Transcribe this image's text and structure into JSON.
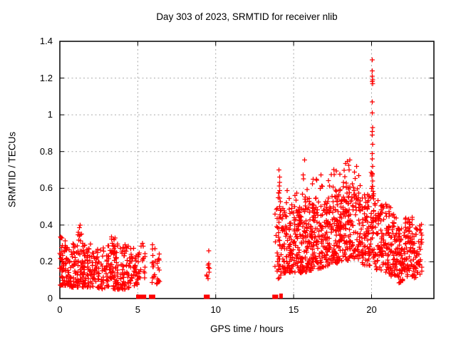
{
  "chart_data": {
    "type": "scatter",
    "title": "Day 303 of 2023, SRMTID for receiver nlib",
    "xlabel": "GPS time / hours",
    "ylabel": "SRMTID / TECUs",
    "xlim": [
      0,
      24
    ],
    "ylim": [
      0,
      1.4
    ],
    "x_ticks": [
      {
        "v": 0,
        "label": "0"
      },
      {
        "v": 5,
        "label": "5"
      },
      {
        "v": 10,
        "label": "10"
      },
      {
        "v": 15,
        "label": "15"
      },
      {
        "v": 20,
        "label": "20"
      }
    ],
    "y_ticks": [
      {
        "v": 0,
        "label": "0"
      },
      {
        "v": 0.2,
        "label": "0.2"
      },
      {
        "v": 0.4,
        "label": "0.4"
      },
      {
        "v": 0.6,
        "label": "0.6"
      },
      {
        "v": 0.8,
        "label": "0.8"
      },
      {
        "v": 1,
        "label": "1"
      },
      {
        "v": 1.2,
        "label": "1.2"
      },
      {
        "v": 1.4,
        "label": "1.4"
      }
    ],
    "legend": null,
    "grid": {
      "on": true,
      "color": "#aaaaaa",
      "dash": "2,3.5"
    },
    "marker": {
      "shape": "plus",
      "color": "#ff0000",
      "size": 7
    },
    "seed": 42,
    "description": "Red plus-marker scatter: dense band 0-5.2h at 0.05-0.40 TECU; sparse columns near 5.3h, 6-6.4h and 9.5h; no data 6.4-9.4h and 9.6-13.7h; dense activity 13.8-23.2h mostly 0.1-0.75 TECU rising toward 18-19h, with an isolated spike column at ~20.05h reaching 1.30; isolated zero-value points near 5.1, 5.4, 5.9, 9.4, 13.8 and 14.2h.",
    "clusters": [
      {
        "x": [
          0.0,
          0.6
        ],
        "n": 70,
        "lo": [
          0.07,
          0.07
        ],
        "hi": [
          0.34,
          0.3
        ],
        "bias": 1.4
      },
      {
        "x": [
          0.6,
          2.4
        ],
        "n": 170,
        "lo": [
          0.06,
          0.06
        ],
        "hi": [
          0.3,
          0.3
        ],
        "bias": 1.5
      },
      {
        "x": [
          1.15,
          1.5
        ],
        "n": 8,
        "lo": [
          0.28,
          0.26
        ],
        "hi": [
          0.4,
          0.34
        ],
        "bias": 1.0
      },
      {
        "x": [
          2.4,
          4.2
        ],
        "n": 150,
        "lo": [
          0.05,
          0.05
        ],
        "hi": [
          0.28,
          0.3
        ],
        "bias": 1.5
      },
      {
        "x": [
          3.3,
          3.9
        ],
        "n": 10,
        "lo": [
          0.24,
          0.24
        ],
        "hi": [
          0.34,
          0.3
        ],
        "bias": 1.0
      },
      {
        "x": [
          4.2,
          5.15
        ],
        "n": 70,
        "lo": [
          0.05,
          0.08
        ],
        "hi": [
          0.3,
          0.26
        ],
        "bias": 1.4
      },
      {
        "x": [
          5.18,
          5.5
        ],
        "n": 13,
        "lo": [
          0.1,
          0.1
        ],
        "hi": [
          0.33,
          0.28
        ],
        "bias": 1.1
      },
      {
        "x": [
          5.88,
          6.12
        ],
        "n": 15,
        "lo": [
          0.07,
          0.08
        ],
        "hi": [
          0.3,
          0.28
        ],
        "bias": 1.1
      },
      {
        "x": [
          6.18,
          6.42
        ],
        "n": 13,
        "lo": [
          0.08,
          0.08
        ],
        "hi": [
          0.28,
          0.24
        ],
        "bias": 1.1
      },
      {
        "x": [
          9.38,
          9.62
        ],
        "n": 8,
        "lo": [
          0.1,
          0.1
        ],
        "hi": [
          0.2,
          0.19
        ],
        "bias": 1.0
      },
      {
        "x": [
          13.75,
          13.98
        ],
        "n": 12,
        "lo": [
          0.17,
          0.12
        ],
        "hi": [
          0.46,
          0.5
        ],
        "bias": 1.1
      },
      {
        "x": [
          13.98,
          14.32
        ],
        "n": 42,
        "lo": [
          0.1,
          0.13
        ],
        "hi": [
          0.58,
          0.5
        ],
        "bias": 1.3
      },
      {
        "x": [
          13.98,
          14.25
        ],
        "n": 8,
        "lo": [
          0.55,
          0.52
        ],
        "hi": [
          0.71,
          0.62
        ],
        "bias": 1.0
      },
      {
        "x": [
          14.32,
          15.3
        ],
        "n": 115,
        "lo": [
          0.13,
          0.14
        ],
        "hi": [
          0.48,
          0.5
        ],
        "bias": 1.3
      },
      {
        "x": [
          14.5,
          15.25
        ],
        "n": 8,
        "lo": [
          0.48,
          0.48
        ],
        "hi": [
          0.6,
          0.58
        ],
        "bias": 1.0
      },
      {
        "x": [
          15.3,
          16.1
        ],
        "n": 115,
        "lo": [
          0.13,
          0.15
        ],
        "hi": [
          0.5,
          0.52
        ],
        "bias": 1.3
      },
      {
        "x": [
          15.45,
          16.05
        ],
        "n": 10,
        "lo": [
          0.5,
          0.5
        ],
        "hi": [
          0.76,
          0.62
        ],
        "bias": 1.2
      },
      {
        "x": [
          16.1,
          17.1
        ],
        "n": 125,
        "lo": [
          0.15,
          0.17
        ],
        "hi": [
          0.52,
          0.54
        ],
        "bias": 1.25
      },
      {
        "x": [
          16.2,
          17.0
        ],
        "n": 10,
        "lo": [
          0.52,
          0.54
        ],
        "hi": [
          0.66,
          0.68
        ],
        "bias": 1.0
      },
      {
        "x": [
          17.1,
          18.1
        ],
        "n": 135,
        "lo": [
          0.17,
          0.2
        ],
        "hi": [
          0.55,
          0.58
        ],
        "bias": 1.2
      },
      {
        "x": [
          17.2,
          18.0
        ],
        "n": 12,
        "lo": [
          0.55,
          0.58
        ],
        "hi": [
          0.7,
          0.72
        ],
        "bias": 1.0
      },
      {
        "x": [
          18.1,
          19.4
        ],
        "n": 155,
        "lo": [
          0.2,
          0.22
        ],
        "hi": [
          0.62,
          0.6
        ],
        "bias": 1.15
      },
      {
        "x": [
          18.15,
          19.3
        ],
        "n": 14,
        "lo": [
          0.62,
          0.6
        ],
        "hi": [
          0.76,
          0.72
        ],
        "bias": 1.0
      },
      {
        "x": [
          19.4,
          19.95
        ],
        "n": 70,
        "lo": [
          0.18,
          0.18
        ],
        "hi": [
          0.58,
          0.56
        ],
        "bias": 1.2
      },
      {
        "x": [
          19.95,
          20.18
        ],
        "n": 30,
        "lo": [
          0.22,
          0.22
        ],
        "hi": [
          0.72,
          0.66
        ],
        "bias": 1.1
      },
      {
        "x": [
          20.18,
          21.1
        ],
        "n": 110,
        "lo": [
          0.15,
          0.14
        ],
        "hi": [
          0.56,
          0.52
        ],
        "bias": 1.25
      },
      {
        "x": [
          21.1,
          21.6
        ],
        "n": 60,
        "lo": [
          0.12,
          0.11
        ],
        "hi": [
          0.52,
          0.46
        ],
        "bias": 1.2
      },
      {
        "x": [
          21.6,
          22.15
        ],
        "n": 70,
        "lo": [
          0.08,
          0.09
        ],
        "hi": [
          0.4,
          0.38
        ],
        "bias": 1.2
      },
      {
        "x": [
          22.15,
          22.65
        ],
        "n": 62,
        "lo": [
          0.11,
          0.12
        ],
        "hi": [
          0.48,
          0.44
        ],
        "bias": 1.15
      },
      {
        "x": [
          22.65,
          23.25
        ],
        "n": 60,
        "lo": [
          0.1,
          0.12
        ],
        "hi": [
          0.4,
          0.42
        ],
        "bias": 1.2
      }
    ],
    "outliers": [
      [
        20.05,
        1.3
      ],
      [
        20.05,
        1.24
      ],
      [
        20.04,
        1.21
      ],
      [
        20.06,
        1.19
      ],
      [
        20.05,
        1.18
      ],
      [
        20.07,
        1.17
      ],
      [
        20.05,
        1.07
      ],
      [
        20.04,
        1.01
      ],
      [
        20.06,
        0.93
      ],
      [
        20.05,
        0.91
      ],
      [
        20.04,
        0.89
      ],
      [
        20.06,
        0.84
      ],
      [
        20.05,
        0.79
      ],
      [
        20.04,
        0.76
      ],
      [
        20.07,
        0.72
      ],
      [
        20.05,
        0.68
      ],
      [
        20.06,
        0.64
      ],
      [
        20.04,
        0.61
      ],
      [
        0.05,
        0.335
      ],
      [
        0.1,
        0.33
      ],
      [
        1.3,
        0.4
      ],
      [
        1.25,
        0.385
      ],
      [
        3.55,
        0.33
      ],
      [
        9.55,
        0.26
      ],
      [
        15.7,
        0.755
      ],
      [
        18.6,
        0.755
      ],
      [
        14.05,
        0.7
      ]
    ],
    "zero_squares": [
      5.05,
      5.12,
      5.38,
      5.88,
      5.96,
      9.4,
      9.46,
      13.79,
      13.85
    ],
    "zero_bars": [
      14.12,
      14.18,
      14.26
    ]
  }
}
